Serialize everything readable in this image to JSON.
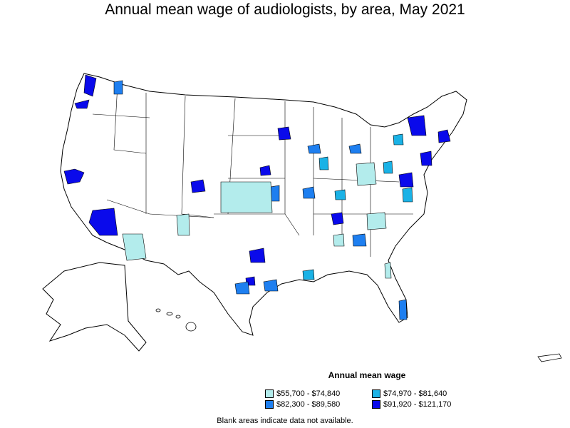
{
  "title": "Annual mean wage of audiologists, by area, May 2021",
  "legend": {
    "title": "Annual mean wage",
    "items": [
      {
        "label": "$55,700 - $74,840",
        "color": "#b3ecec"
      },
      {
        "label": "$74,970 - $81,640",
        "color": "#1ab2e6"
      },
      {
        "label": "$82,300 - $89,580",
        "color": "#1e7ff0"
      },
      {
        "label": "$91,920 - $121,170",
        "color": "#0a0aeb"
      }
    ]
  },
  "note": "Blank areas indicate data not available."
}
